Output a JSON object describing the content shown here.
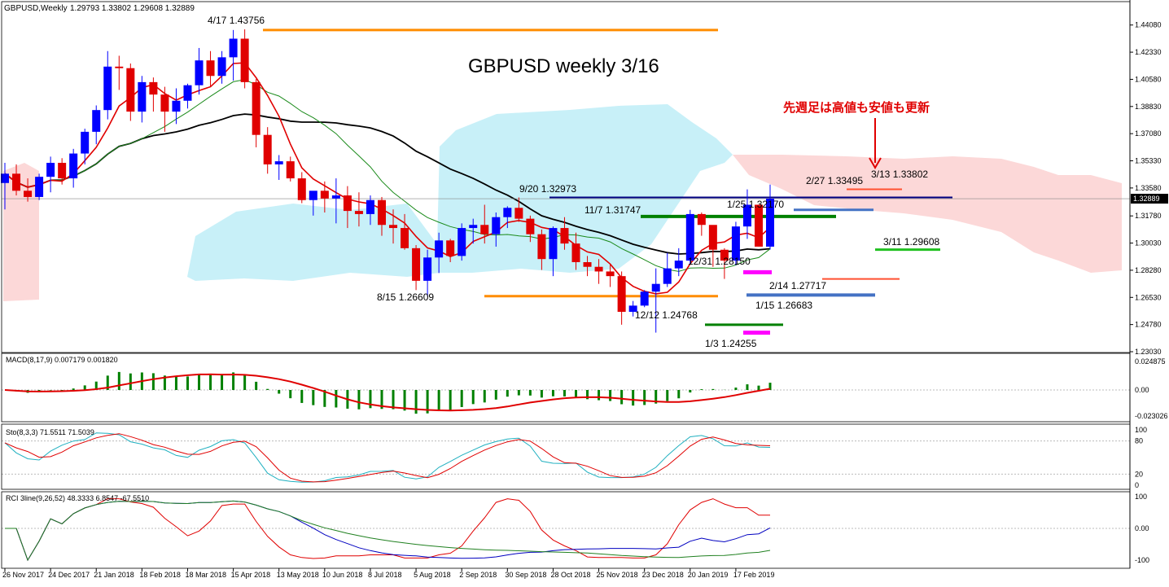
{
  "header": {
    "symbol": "GBPUSD,Weekly",
    "ohlc": "1.29793 1.33802 1.29608 1.32889"
  },
  "chart_data": {
    "type": "candlestick",
    "title": "GBPUSD weekly 3/16",
    "note": "先週足は高値も安値も更新",
    "price_axis": {
      "ticks": [
        "1.44080",
        "1.42330",
        "1.40580",
        "1.38830",
        "1.37080",
        "1.35330",
        "1.33580",
        "1.31780",
        "1.30030",
        "1.28280",
        "1.26530",
        "1.24780",
        "1.23030"
      ],
      "ylim": [
        1.2303,
        1.448
      ],
      "current": "1.32889"
    },
    "time_axis": [
      "26 Nov 2017",
      "24 Dec 2017",
      "21 Jan 2018",
      "18 Feb 2018",
      "18 Mar 2018",
      "15 Apr 2018",
      "13 May 2018",
      "10 Jun 2018",
      "8 Jul 2018",
      "5 Aug 2018",
      "2 Sep 2018",
      "30 Sep 2018",
      "28 Oct 2018",
      "25 Nov 2018",
      "23 Dec 2018",
      "20 Jan 2019",
      "17 Feb 2019"
    ],
    "candles": [
      [
        1.339,
        1.352,
        1.322,
        1.345
      ],
      [
        1.345,
        1.351,
        1.331,
        1.334
      ],
      [
        1.334,
        1.342,
        1.327,
        1.33
      ],
      [
        1.33,
        1.345,
        1.328,
        1.343
      ],
      [
        1.343,
        1.356,
        1.333,
        1.352
      ],
      [
        1.352,
        1.355,
        1.338,
        1.342
      ],
      [
        1.342,
        1.361,
        1.336,
        1.358
      ],
      [
        1.358,
        1.374,
        1.351,
        1.372
      ],
      [
        1.372,
        1.389,
        1.364,
        1.386
      ],
      [
        1.386,
        1.424,
        1.38,
        1.414
      ],
      [
        1.414,
        1.421,
        1.399,
        1.413
      ],
      [
        1.413,
        1.416,
        1.379,
        1.385
      ],
      [
        1.385,
        1.408,
        1.378,
        1.404
      ],
      [
        1.404,
        1.407,
        1.385,
        1.396
      ],
      [
        1.396,
        1.401,
        1.372,
        1.385
      ],
      [
        1.385,
        1.4,
        1.377,
        1.392
      ],
      [
        1.392,
        1.403,
        1.387,
        1.402
      ],
      [
        1.402,
        1.426,
        1.396,
        1.418
      ],
      [
        1.418,
        1.424,
        1.401,
        1.408
      ],
      [
        1.408,
        1.424,
        1.403,
        1.42
      ],
      [
        1.42,
        1.4376,
        1.405,
        1.432
      ],
      [
        1.432,
        1.438,
        1.4,
        1.404
      ],
      [
        1.404,
        1.406,
        1.362,
        1.37
      ],
      [
        1.37,
        1.375,
        1.345,
        1.351
      ],
      [
        1.351,
        1.357,
        1.341,
        1.353
      ],
      [
        1.353,
        1.356,
        1.34,
        1.342
      ],
      [
        1.342,
        1.346,
        1.326,
        1.328
      ],
      [
        1.328,
        1.333,
        1.318,
        1.334
      ],
      [
        1.334,
        1.34,
        1.32,
        1.329
      ],
      [
        1.329,
        1.342,
        1.313,
        1.331
      ],
      [
        1.331,
        1.337,
        1.31,
        1.321
      ],
      [
        1.321,
        1.333,
        1.311,
        1.319
      ],
      [
        1.319,
        1.331,
        1.312,
        1.328
      ],
      [
        1.328,
        1.33,
        1.305,
        1.312
      ],
      [
        1.312,
        1.322,
        1.3,
        1.31
      ],
      [
        1.31,
        1.319,
        1.296,
        1.297
      ],
      [
        1.297,
        1.299,
        1.27,
        1.276
      ],
      [
        1.276,
        1.296,
        1.2661,
        1.291
      ],
      [
        1.291,
        1.307,
        1.281,
        1.302
      ],
      [
        1.302,
        1.303,
        1.288,
        1.292
      ],
      [
        1.292,
        1.313,
        1.289,
        1.31
      ],
      [
        1.31,
        1.316,
        1.3,
        1.312
      ],
      [
        1.312,
        1.325,
        1.3,
        1.306
      ],
      [
        1.306,
        1.32,
        1.298,
        1.317
      ],
      [
        1.317,
        1.324,
        1.31,
        1.323
      ],
      [
        1.323,
        1.3297,
        1.314,
        1.316
      ],
      [
        1.316,
        1.318,
        1.301,
        1.306
      ],
      [
        1.306,
        1.309,
        1.283,
        1.29
      ],
      [
        1.29,
        1.311,
        1.279,
        1.31
      ],
      [
        1.31,
        1.317,
        1.296,
        1.3
      ],
      [
        1.3,
        1.307,
        1.283,
        1.288
      ],
      [
        1.288,
        1.292,
        1.279,
        1.285
      ],
      [
        1.285,
        1.29,
        1.274,
        1.282
      ],
      [
        1.282,
        1.287,
        1.272,
        1.279
      ],
      [
        1.279,
        1.282,
        1.2477,
        1.256
      ],
      [
        1.256,
        1.263,
        1.253,
        1.26
      ],
      [
        1.26,
        1.27,
        1.259,
        1.269
      ],
      [
        1.269,
        1.284,
        1.2426,
        1.274
      ],
      [
        1.274,
        1.294,
        1.272,
        1.284
      ],
      [
        1.284,
        1.297,
        1.279,
        1.289
      ],
      [
        1.289,
        1.3217,
        1.287,
        1.319
      ],
      [
        1.319,
        1.32,
        1.305,
        1.312
      ],
      [
        1.312,
        1.311,
        1.285,
        1.296
      ],
      [
        1.296,
        1.297,
        1.2772,
        1.289
      ],
      [
        1.289,
        1.314,
        1.286,
        1.311
      ],
      [
        1.311,
        1.3349,
        1.303,
        1.325
      ],
      [
        1.325,
        1.325,
        1.298,
        1.298
      ],
      [
        1.298,
        1.338,
        1.2961,
        1.3289
      ]
    ],
    "annotations": [
      "4/17 1.43756",
      "9/20 1.32973",
      "11/7 1.31747",
      "1/25 1.32170",
      "2/27 1.33495",
      "3/13 1.33802",
      "3/11 1.29608",
      "12/31 1.28150",
      "2/14 1.27717",
      "1/15 1.26683",
      "8/15 1.26609",
      "12/12 1.24768",
      "1/3 1.24255"
    ],
    "macd": {
      "label": "MACD(8,17,9) 0.007179 0.001820",
      "ticks": [
        "0.024875",
        "0.00",
        "-0.023026"
      ]
    },
    "stoch": {
      "label": "Sto(8,3,3) 71.5511 71.5039",
      "ticks": [
        "100",
        "80",
        "20",
        "0"
      ]
    },
    "rci": {
      "label": "RCI 3line(9,26,52) 48.3333 6.8547 -67.5510",
      "ticks": [
        "100",
        "0.00",
        "-100"
      ]
    },
    "colors": {
      "bull": "#0000ff",
      "bear": "#e00000",
      "cloud_up": "#c8f0f8",
      "cloud_down": "#fcd8d8",
      "orange": "#ff8c00",
      "green": "#008000",
      "magenta": "#ff00ff",
      "navy": "#000080"
    }
  }
}
